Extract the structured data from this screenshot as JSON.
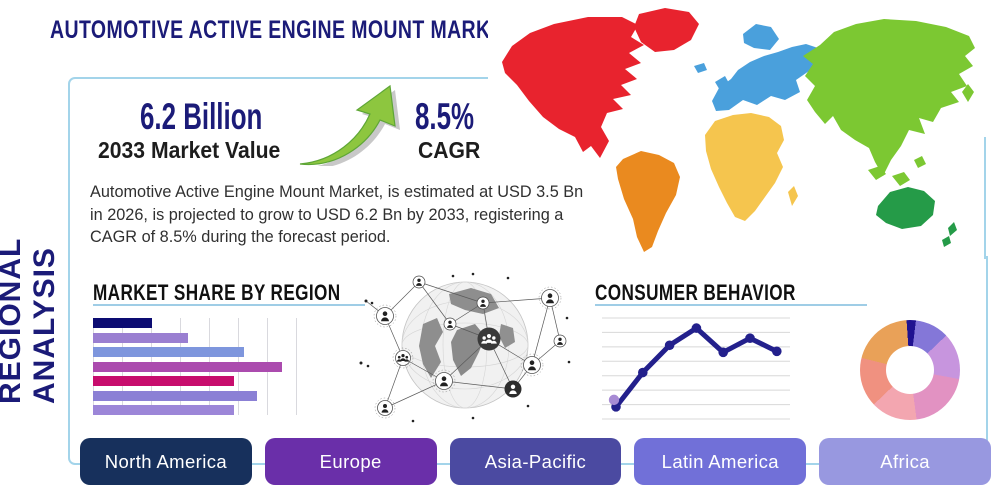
{
  "header": {
    "title": "AUTOMOTIVE ACTIVE ENGINE MOUNT MARKET",
    "side_label": "REGIONAL ANALYSIS"
  },
  "stats": {
    "market_value": "6.2 Billion",
    "market_value_label": "2033 Market Value",
    "cagr_value": "8.5%",
    "cagr_label": "CAGR",
    "growth_arrow_icon": "growth-arrow-icon"
  },
  "description": "Automotive Active Engine Mount Market, is estimated at USD 3.5 Bn in 2026, is projected to grow to USD 6.2 Bn by 2033, registering a CAGR of 8.5% during the forecast period.",
  "sections": {
    "market_share_title": "MARKET SHARE BY REGION",
    "consumer_behavior_title": "CONSUMER BEHAVIOR"
  },
  "region_buttons": [
    {
      "label": "North America",
      "color": "#17305c"
    },
    {
      "label": "Europe",
      "color": "#6a2fa9"
    },
    {
      "label": "Asia-Pacific",
      "color": "#4b4aa1"
    },
    {
      "label": "Latin America",
      "color": "#7170d8"
    },
    {
      "label": "Africa",
      "color": "#9898e0"
    }
  ],
  "world_map": {
    "regions": [
      {
        "name": "north-america",
        "color": "#e8232e"
      },
      {
        "name": "south-america",
        "color": "#ea8a1f"
      },
      {
        "name": "europe",
        "color": "#4aa0dc"
      },
      {
        "name": "africa",
        "color": "#f5c54e"
      },
      {
        "name": "asia",
        "color": "#7cc832"
      },
      {
        "name": "oceania",
        "color": "#259b48"
      }
    ]
  },
  "chart_data": [
    {
      "type": "bar",
      "orientation": "horizontal",
      "section": "MARKET SHARE BY REGION",
      "values": [
        28,
        45,
        72,
        90,
        67,
        78,
        67
      ],
      "xlim": [
        0,
        100
      ],
      "categories_labeled": false,
      "grid": "vertical",
      "colors": [
        "#0c0c72",
        "#9a7fd1",
        "#7e96dd",
        "#ab4bae",
        "#c70d6d",
        "#8b80d5",
        "#9c86d8"
      ]
    },
    {
      "type": "line",
      "section": "CONSUMER BEHAVIOR",
      "x": [
        1,
        2,
        3,
        4,
        5,
        6,
        7
      ],
      "values": [
        12,
        46,
        73,
        90,
        66,
        80,
        67
      ],
      "ylim": [
        0,
        100
      ],
      "grid": "horizontal",
      "color": "#23208c",
      "start_marker_color": "#a78bd4"
    },
    {
      "type": "pie",
      "donut": true,
      "values": [
        3,
        11,
        15,
        20,
        15,
        16,
        20
      ],
      "colors": [
        "#201290",
        "#8477d8",
        "#c795de",
        "#e292c2",
        "#f3a6b0",
        "#f09180",
        "#e9a158"
      ]
    }
  ],
  "theme": {
    "accent_navy": "#1b1b78",
    "panel_border": "#a3d4ea",
    "heading_underline": "#9fcde6",
    "arrow_green": "#8dc63f",
    "arrow_green_dark": "#5ea636",
    "body_text": "#303030"
  }
}
